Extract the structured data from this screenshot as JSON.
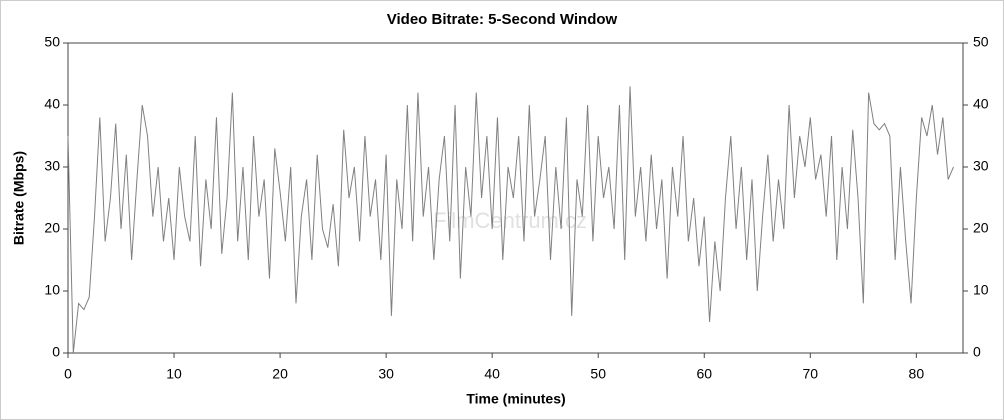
{
  "chart_data": {
    "type": "line",
    "title": "Video Bitrate: 5-Second Window",
    "x_label": "Time (minutes)",
    "y_label": "Bitrate (Mbps)",
    "watermark": "FilmCentrum.cz",
    "x": [
      0,
      0.5,
      1,
      1.5,
      2,
      2.5,
      3,
      3.5,
      4,
      4.5,
      5,
      5.5,
      6,
      6.5,
      7,
      7.5,
      8,
      8.5,
      9,
      9.5,
      10,
      10.5,
      11,
      11.5,
      12,
      12.5,
      13,
      13.5,
      14,
      14.5,
      15,
      15.5,
      16,
      16.5,
      17,
      17.5,
      18,
      18.5,
      19,
      19.5,
      20,
      20.5,
      21,
      21.5,
      22,
      22.5,
      23,
      23.5,
      24,
      24.5,
      25,
      25.5,
      26,
      26.5,
      27,
      27.5,
      28,
      28.5,
      29,
      29.5,
      30,
      30.5,
      31,
      31.5,
      32,
      32.5,
      33,
      33.5,
      34,
      34.5,
      35,
      35.5,
      36,
      36.5,
      37,
      37.5,
      38,
      38.5,
      39,
      39.5,
      40,
      40.5,
      41,
      41.5,
      42,
      42.5,
      43,
      43.5,
      44,
      44.5,
      45,
      45.5,
      46,
      46.5,
      47,
      47.5,
      48,
      48.5,
      49,
      49.5,
      50,
      50.5,
      51,
      51.5,
      52,
      52.5,
      53,
      53.5,
      54,
      54.5,
      55,
      55.5,
      56,
      56.5,
      57,
      57.5,
      58,
      58.5,
      59,
      59.5,
      60,
      60.5,
      61,
      61.5,
      62,
      62.5,
      63,
      63.5,
      64,
      64.5,
      65,
      65.5,
      66,
      66.5,
      67,
      67.5,
      68,
      68.5,
      69,
      69.5,
      70,
      70.5,
      71,
      71.5,
      72,
      72.5,
      73,
      73.5,
      74,
      74.5,
      75,
      75.5,
      76,
      76.5,
      77,
      77.5,
      78,
      78.5,
      79,
      79.5,
      80,
      80.5,
      81,
      81.5,
      82,
      82.5,
      83,
      83.5
    ],
    "series": [
      {
        "name": "Bitrate",
        "color": "#808080",
        "values": [
          35,
          0,
          8,
          7,
          9,
          22,
          38,
          18,
          25,
          37,
          20,
          32,
          15,
          28,
          40,
          35,
          22,
          30,
          18,
          25,
          15,
          30,
          22,
          18,
          35,
          14,
          28,
          20,
          38,
          16,
          25,
          42,
          18,
          30,
          15,
          35,
          22,
          28,
          12,
          33,
          26,
          18,
          30,
          8,
          22,
          28,
          15,
          32,
          20,
          17,
          24,
          14,
          36,
          25,
          30,
          18,
          35,
          22,
          28,
          15,
          32,
          6,
          28,
          20,
          40,
          18,
          42,
          22,
          30,
          15,
          28,
          35,
          18,
          40,
          12,
          30,
          22,
          42,
          25,
          35,
          20,
          38,
          15,
          30,
          25,
          35,
          18,
          40,
          22,
          28,
          35,
          15,
          30,
          20,
          38,
          6,
          28,
          22,
          40,
          18,
          35,
          25,
          30,
          20,
          40,
          15,
          43,
          22,
          30,
          18,
          32,
          20,
          28,
          12,
          30,
          22,
          35,
          18,
          25,
          14,
          22,
          5,
          18,
          10,
          25,
          35,
          20,
          30,
          15,
          28,
          10,
          22,
          32,
          18,
          28,
          20,
          40,
          25,
          35,
          30,
          38,
          28,
          32,
          22,
          35,
          15,
          30,
          20,
          36,
          25,
          8,
          42,
          37,
          36,
          37,
          35,
          15,
          30,
          18,
          8,
          25,
          38,
          35,
          40,
          32,
          38,
          28,
          30
        ]
      }
    ],
    "xlim": [
      0,
      84.4
    ],
    "ylim": [
      0,
      50
    ],
    "xticks": [
      0,
      10,
      20,
      30,
      40,
      50,
      60,
      70,
      80
    ],
    "yticks": [
      0,
      10,
      20,
      30,
      40,
      50
    ],
    "y2lim": [
      0,
      50
    ],
    "y2ticks": [
      0,
      10,
      20,
      30,
      40,
      50
    ]
  }
}
